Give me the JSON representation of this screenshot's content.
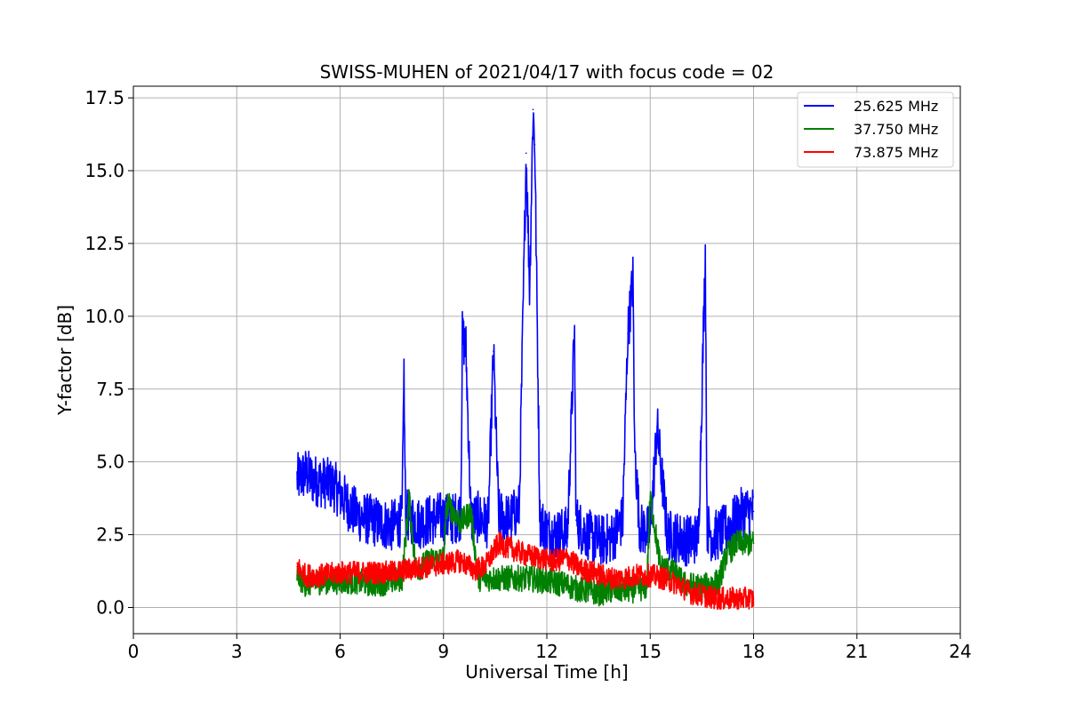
{
  "chart_data": {
    "type": "line",
    "title": "SWISS-MUHEN of 2021/04/17 with focus code = 02",
    "xlabel": "Universal Time [h]",
    "ylabel": "Y-factor [dB]",
    "xlim": [
      0,
      24
    ],
    "ylim": [
      -0.9,
      17.9
    ],
    "xticks": [
      0,
      3,
      6,
      9,
      12,
      15,
      18,
      21,
      24
    ],
    "xtick_labels": [
      "0",
      "3",
      "6",
      "9",
      "12",
      "15",
      "18",
      "21",
      "24"
    ],
    "yticks": [
      0,
      2.5,
      5,
      7.5,
      10,
      12.5,
      15,
      17.5
    ],
    "ytick_labels": [
      "0.0",
      "2.5",
      "5.0",
      "7.5",
      "10.0",
      "12.5",
      "15.0",
      "17.5"
    ],
    "grid": true,
    "legend_position": "top-right",
    "series": [
      {
        "name": "25.625 MHz",
        "color": "#0000ff",
        "x": [
          4.75,
          5.0,
          5.2,
          5.5,
          5.8,
          6.0,
          6.3,
          6.6,
          6.9,
          7.2,
          7.5,
          7.8,
          7.85,
          7.9,
          8.0,
          8.3,
          8.6,
          8.9,
          9.2,
          9.5,
          9.55,
          9.65,
          9.8,
          10.0,
          10.3,
          10.45,
          10.6,
          10.9,
          11.2,
          11.4,
          11.5,
          11.6,
          11.65,
          11.8,
          12.0,
          12.3,
          12.6,
          12.8,
          12.85,
          13.0,
          13.3,
          13.6,
          13.9,
          14.2,
          14.35,
          14.5,
          14.55,
          14.7,
          15.0,
          15.2,
          15.5,
          15.8,
          16.1,
          16.4,
          16.6,
          16.65,
          16.8,
          17.1,
          17.4,
          17.7,
          18.0
        ],
        "y": [
          4.4,
          4.6,
          4.4,
          4.3,
          4.2,
          3.9,
          3.4,
          3.1,
          3.0,
          2.9,
          2.8,
          3.0,
          8.0,
          3.2,
          3.1,
          2.9,
          3.0,
          3.1,
          3.0,
          3.2,
          9.3,
          8.9,
          3.0,
          3.1,
          2.9,
          8.8,
          3.2,
          3.0,
          3.4,
          15.6,
          11.0,
          17.1,
          15.9,
          3.0,
          2.6,
          2.5,
          2.6,
          9.4,
          3.0,
          2.7,
          2.4,
          2.3,
          2.4,
          3.0,
          9.4,
          11.3,
          5.4,
          2.7,
          2.6,
          6.2,
          2.5,
          2.4,
          2.3,
          2.4,
          12.2,
          2.8,
          2.4,
          2.6,
          2.9,
          3.3,
          3.3
        ]
      },
      {
        "name": "37.750 MHz",
        "color": "#008000",
        "x": [
          4.75,
          5.0,
          5.5,
          6.0,
          6.5,
          7.0,
          7.5,
          7.8,
          8.0,
          8.2,
          8.6,
          9.0,
          9.1,
          9.5,
          9.8,
          10.0,
          10.5,
          11.0,
          11.5,
          12.0,
          12.5,
          13.0,
          13.5,
          14.0,
          14.5,
          14.9,
          15.0,
          15.3,
          15.6,
          16.0,
          16.5,
          17.0,
          17.2,
          17.5,
          18.0
        ],
        "y": [
          1.1,
          0.8,
          0.9,
          0.9,
          0.9,
          0.8,
          0.9,
          1.0,
          3.7,
          1.3,
          1.6,
          1.7,
          3.6,
          2.9,
          3.3,
          1.0,
          1.0,
          1.0,
          1.0,
          0.9,
          0.8,
          0.6,
          0.5,
          0.6,
          0.6,
          0.7,
          3.8,
          1.4,
          1.3,
          0.8,
          0.7,
          0.9,
          1.8,
          2.2,
          2.2
        ]
      },
      {
        "name": "73.875 MHz",
        "color": "#ff0000",
        "x": [
          4.75,
          5.0,
          5.5,
          6.0,
          6.5,
          7.0,
          7.5,
          8.0,
          8.5,
          9.0,
          9.5,
          9.9,
          10.2,
          10.6,
          11.0,
          11.4,
          11.8,
          12.2,
          12.6,
          13.0,
          13.4,
          13.8,
          14.2,
          14.6,
          15.0,
          15.4,
          15.8,
          16.2,
          16.6,
          17.0,
          17.4,
          18.0
        ],
        "y": [
          1.4,
          1.1,
          1.1,
          1.2,
          1.2,
          1.2,
          1.2,
          1.3,
          1.4,
          1.5,
          1.6,
          1.3,
          1.4,
          2.2,
          2.0,
          1.8,
          1.7,
          1.6,
          1.7,
          1.3,
          1.2,
          1.0,
          1.0,
          1.1,
          1.1,
          1.0,
          0.8,
          0.5,
          0.4,
          0.3,
          0.3,
          0.3
        ]
      }
    ]
  }
}
